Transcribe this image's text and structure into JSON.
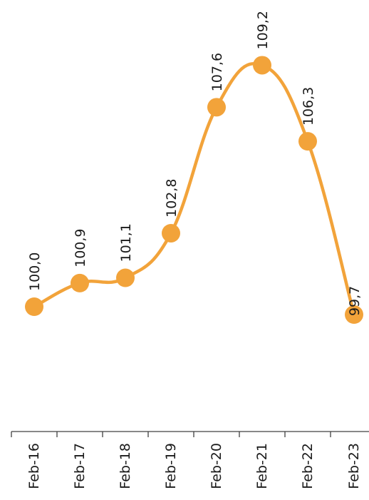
{
  "chart_data": {
    "type": "line",
    "orientation": "rotated-90",
    "smooth": true,
    "categories": [
      "Feb-16",
      "Feb-17",
      "Feb-18",
      "Feb-19",
      "Feb-20",
      "Feb-21",
      "Feb-22",
      "Feb-23"
    ],
    "series": [
      {
        "values": [
          100.0,
          100.9,
          101.1,
          102.8,
          107.6,
          109.2,
          106.3,
          99.7
        ],
        "labels": [
          "100,0",
          "100,9",
          "101,1",
          "102,8",
          "107,6",
          "109,2",
          "106,3",
          "99,7"
        ],
        "color": "#F2A33A"
      }
    ],
    "title": "",
    "xlabel": "",
    "ylabel": "",
    "ylim": [
      88.0,
      110.0
    ],
    "grid": false,
    "legend": "none"
  }
}
